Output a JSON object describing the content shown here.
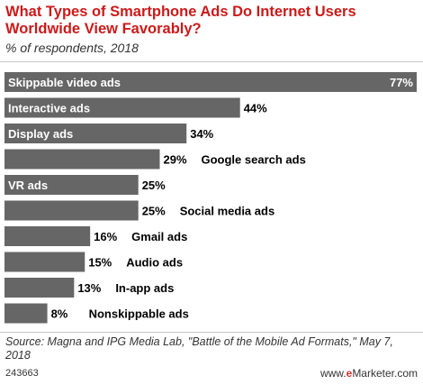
{
  "header": {
    "title": "What Types of Smartphone Ads Do Internet Users Worldwide View Favorably?",
    "subtitle": "% of respondents, 2018"
  },
  "chart_data": {
    "type": "bar",
    "orientation": "horizontal",
    "categories": [
      "Skippable video ads",
      "Interactive ads",
      "Display ads",
      "Google search ads",
      "VR ads",
      "Social media ads",
      "Gmail ads",
      "Audio ads",
      "In-app ads",
      "Nonskippable ads"
    ],
    "values": [
      77,
      44,
      34,
      29,
      25,
      25,
      16,
      15,
      13,
      8
    ],
    "value_labels": [
      "77%",
      "44%",
      "34%",
      "29%",
      "25%",
      "25%",
      "16%",
      "15%",
      "13%",
      "8%"
    ],
    "xlim": [
      0,
      77
    ],
    "grid": false,
    "bar_color": "#666666",
    "label_color_inside": "#ffffff",
    "label_color_outside": "#000000"
  },
  "footer": {
    "source": "Source: Magna and IPG Media Lab, \"Battle of the Mobile Ad Formats,\" May 7, 2018",
    "chart_id": "243663",
    "brand_prefix": "www.",
    "brand_e": "e",
    "brand_rest": "Marketer.com"
  }
}
